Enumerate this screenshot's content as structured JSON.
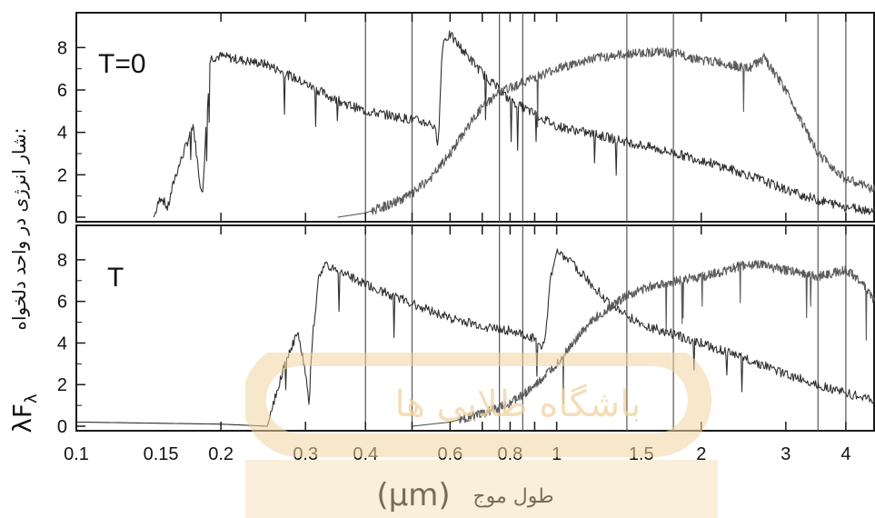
{
  "chart_data": [
    {
      "type": "line",
      "panel": "top",
      "panel_label": "T=0",
      "x_scale": "log",
      "xlim": [
        0.1,
        4.6
      ],
      "ylim": [
        0,
        9
      ],
      "y_ticks": [
        0,
        2,
        4,
        6,
        8
      ],
      "vertical_lines": [
        0.4,
        0.5,
        0.76,
        0.85,
        1.4,
        1.75,
        3.5,
        4.0
      ],
      "series": [
        {
          "x": [
            0.145,
            0.15,
            0.155,
            0.16,
            0.17,
            0.175,
            0.18,
            0.183,
            0.186,
            0.19,
            0.2,
            0.21,
            0.25,
            0.3,
            0.35,
            0.4,
            0.45,
            0.5,
            0.55,
            0.56,
            0.565,
            0.57,
            0.575,
            0.58,
            0.6,
            0.62,
            0.7,
            0.8,
            1.0,
            1.2,
            1.5,
            2.0,
            2.5,
            3.0,
            3.5,
            4.0,
            4.6
          ],
          "y": [
            0,
            1.0,
            0.4,
            1.8,
            3.5,
            4.4,
            2.0,
            0.9,
            4.0,
            7.5,
            7.6,
            7.5,
            7.2,
            6.3,
            5.5,
            5.0,
            4.8,
            4.6,
            4.4,
            4.0,
            3.6,
            4.5,
            7.0,
            8.3,
            8.6,
            8.2,
            6.8,
            5.5,
            4.3,
            3.9,
            3.4,
            2.7,
            2.0,
            1.3,
            0.8,
            0.5,
            0.3
          ]
        },
        {
          "x": [
            0.35,
            0.4,
            0.45,
            0.5,
            0.55,
            0.6,
            0.65,
            0.7,
            0.75,
            0.8,
            0.9,
            1.0,
            1.2,
            1.4,
            1.6,
            1.8,
            2.0,
            2.2,
            2.5,
            2.7,
            3.0,
            3.5,
            4.0,
            4.6
          ],
          "y": [
            0,
            0.2,
            0.6,
            1.1,
            1.9,
            3.0,
            4.2,
            5.2,
            5.8,
            6.1,
            6.6,
            7.0,
            7.5,
            7.7,
            7.8,
            7.7,
            7.4,
            7.3,
            7.0,
            7.5,
            6.0,
            3.0,
            1.8,
            1.3
          ]
        }
      ]
    },
    {
      "type": "line",
      "panel": "bottom",
      "panel_label": "T",
      "x_scale": "log",
      "xlim": [
        0.1,
        4.6
      ],
      "ylim": [
        0,
        9
      ],
      "y_ticks": [
        0,
        2,
        4,
        6,
        8
      ],
      "vertical_lines": [
        0.4,
        0.5,
        0.76,
        0.85,
        1.4,
        1.75,
        3.5,
        4.0
      ],
      "series": [
        {
          "x": [
            0.1,
            0.2,
            0.25,
            0.26,
            0.27,
            0.28,
            0.29,
            0.3,
            0.305,
            0.31,
            0.32,
            0.33,
            0.35,
            0.4,
            0.5,
            0.6,
            0.7,
            0.8,
            0.9,
            0.93,
            0.95,
            0.97,
            1.0,
            1.1,
            1.3,
            1.5,
            2.0,
            2.5,
            3.0,
            3.5,
            4.0,
            4.6
          ],
          "y": [
            0.2,
            0.1,
            0,
            1.5,
            2.8,
            3.8,
            4.5,
            2.5,
            1.0,
            4.2,
            7.2,
            7.8,
            7.5,
            6.8,
            5.9,
            5.2,
            4.8,
            4.6,
            4.2,
            3.9,
            4.4,
            7.0,
            8.5,
            7.6,
            5.8,
            4.9,
            4.0,
            3.2,
            2.5,
            2.0,
            1.6,
            1.2
          ]
        },
        {
          "x": [
            0.5,
            0.6,
            0.7,
            0.8,
            0.9,
            1.0,
            1.1,
            1.2,
            1.4,
            1.6,
            1.8,
            2.0,
            2.2,
            2.4,
            2.6,
            3.0,
            3.5,
            4.0,
            4.3,
            4.6
          ],
          "y": [
            0,
            0.2,
            0.6,
            1.1,
            1.9,
            3.0,
            4.2,
            5.2,
            6.3,
            6.8,
            7.0,
            7.2,
            7.4,
            7.7,
            7.8,
            7.5,
            7.2,
            7.5,
            7.0,
            6.0
          ]
        }
      ]
    }
  ],
  "x_tick_labels": [
    "0.1",
    "0.15",
    "0.2",
    "0.3",
    "0.4",
    "0.6",
    "0.8",
    "1",
    "1.5",
    "2",
    "3",
    "4"
  ],
  "ylabel_persian": "شار انرژی در واحد دلخواه:",
  "ylabel_symbol": "λF",
  "ylabel_sub": "λ",
  "xlabel_persian": "طول موج",
  "xlabel_unit": "(μm)",
  "watermark_text": "باشگاه طلایی ها",
  "colors": {
    "line": "#2f2f2f",
    "line_light": "#5a5a5a",
    "axis": "#1a1a1a",
    "watermark": "#f1d4a0"
  }
}
